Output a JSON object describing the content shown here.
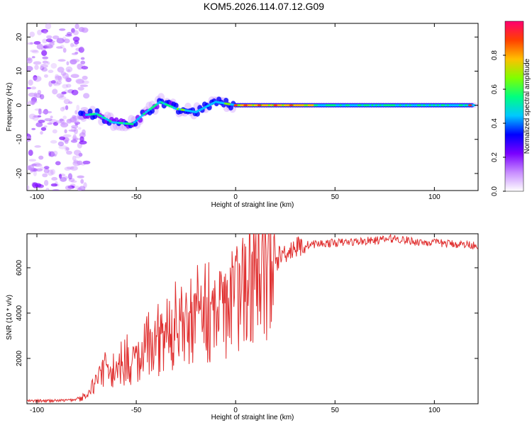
{
  "chart_data": {
    "title": "KOM5.2026.114.07.12.G09",
    "charts": [
      {
        "id": "spectrogram",
        "type": "heatmap",
        "xlabel": "Height of straight line (km)",
        "ylabel": "Frequency (Hz)",
        "xlim": [
          -105,
          122
        ],
        "ylim": [
          -25,
          24
        ],
        "xticks": [
          -100,
          -50,
          0,
          50,
          100
        ],
        "yticks": [
          -20,
          -10,
          0,
          10,
          20
        ],
        "colorbar": {
          "label": "Normalized spectral amplitude",
          "range": [
            0,
            1
          ],
          "ticks": [
            0.0,
            0.2,
            0.4,
            0.6,
            0.8
          ],
          "colors": [
            "#ffffff",
            "#c78cff",
            "#7a00ff",
            "#0000ff",
            "#00c8ff",
            "#00ff80",
            "#80ff00",
            "#ffc000",
            "#ff4000",
            "#ff0070"
          ]
        },
        "ridge_points": [
          {
            "x": -78,
            "y": -3
          },
          {
            "x": -70,
            "y": -2.5
          },
          {
            "x": -62,
            "y": -5
          },
          {
            "x": -52,
            "y": -5.5
          },
          {
            "x": -45,
            "y": -2
          },
          {
            "x": -38,
            "y": 1
          },
          {
            "x": -30,
            "y": -1
          },
          {
            "x": -20,
            "y": -2
          },
          {
            "x": -10,
            "y": 1
          },
          {
            "x": 0,
            "y": 0
          },
          {
            "x": 10,
            "y": 0
          },
          {
            "x": 30,
            "y": 0
          },
          {
            "x": 60,
            "y": 0
          },
          {
            "x": 90,
            "y": 0
          },
          {
            "x": 120,
            "y": 0
          }
        ]
      },
      {
        "id": "snr",
        "type": "line",
        "xlabel": "Height of straight line (km)",
        "ylabel": "SNR (10 * v/v)",
        "xlim": [
          -105,
          122
        ],
        "ylim": [
          0,
          7500
        ],
        "xticks": [
          -100,
          -50,
          0,
          50,
          100
        ],
        "yticks": [
          2000,
          4000,
          6000
        ],
        "series": [
          {
            "name": "SNR",
            "color": "#e03030",
            "x": [
              -105,
              -95,
              -85,
              -78,
              -72,
              -68,
              -62,
              -56,
              -50,
              -45,
              -40,
              -35,
              -30,
              -25,
              -20,
              -15,
              -10,
              -5,
              0,
              5,
              10,
              15,
              20,
              25,
              30,
              35,
              40,
              50,
              60,
              70,
              80,
              90,
              100,
              110,
              122
            ],
            "y": [
              120,
              130,
              150,
              200,
              700,
              1300,
              1500,
              1700,
              1900,
              2200,
              2600,
              2900,
              3100,
              3300,
              3500,
              3700,
              3900,
              4200,
              4600,
              5100,
              5500,
              5900,
              6300,
              6700,
              6900,
              7000,
              7050,
              7100,
              7150,
              7200,
              7300,
              7150,
              7100,
              7050,
              7000
            ]
          }
        ]
      }
    ]
  }
}
